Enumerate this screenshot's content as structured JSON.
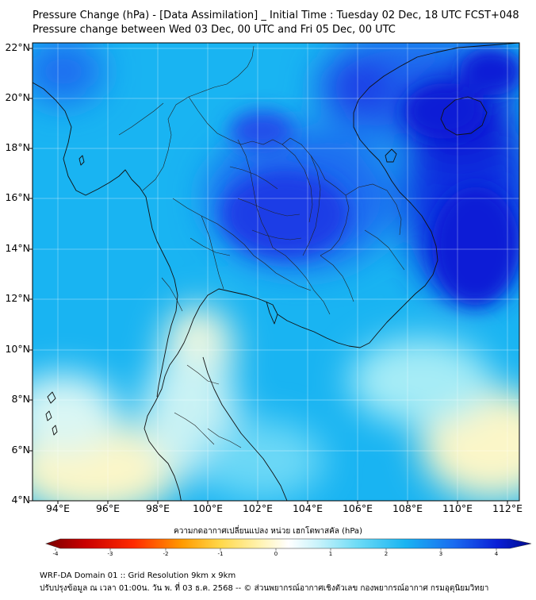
{
  "header": {
    "title_line1": "Pressure Change (hPa) - [Data Assimilation] _ Initial Time : Tuesday 02 Dec, 18 UTC FCST+048",
    "title_line2": "Pressure change between Wed 03 Dec, 00 UTC and Fri 05 Dec, 00 UTC"
  },
  "map": {
    "lat_labels": [
      "22°N",
      "20°N",
      "18°N",
      "16°N",
      "14°N",
      "12°N",
      "10°N",
      "8°N",
      "6°N",
      "4°N"
    ],
    "lon_labels": [
      "94°E",
      "96°E",
      "98°E",
      "100°E",
      "102°E",
      "104°E",
      "106°E",
      "108°E",
      "110°E",
      "112°E"
    ],
    "lat_range": [
      4,
      22
    ],
    "lon_range": [
      93,
      112.5
    ],
    "grid": true,
    "palette": {
      "deep_blue": "#0a1fd6",
      "mid_blue": "#1a6cf0",
      "sky_blue": "#19b4f2",
      "light_cyan": "#7fe0f8",
      "pale": "#eef9f2",
      "pale_yellow": "#fbf6c8"
    }
  },
  "colorbar": {
    "label": "ความกดอากาศเปลี่ยนแปลง หน่วย เฮกโตพาสคัล (hPa)",
    "ticks": [
      "-4",
      "-3",
      "-2",
      "-1",
      "0",
      "1",
      "2",
      "3",
      "4"
    ],
    "range": [
      -4,
      4
    ]
  },
  "footer": {
    "line1": "WRF-DA Domain 01 :: Grid Resolution 9km x 9km",
    "line2": "ปรับปรุงข้อมูล ณ เวลา 01:00น. วัน พ. ที่ 03 ธ.ค. 2568 -- © ส่วนพยากรณ์อากาศเชิงตัวเลข กองพยากรณ์อากาศ กรมอุตุนิยมวิทยา"
  }
}
